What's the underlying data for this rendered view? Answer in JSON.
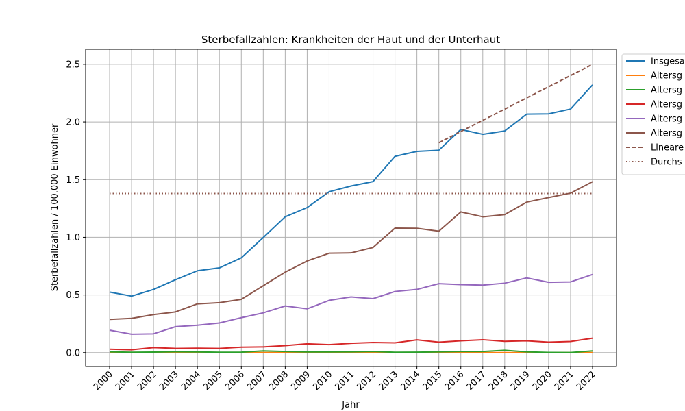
{
  "chart_data": {
    "type": "line",
    "title": "Sterbefallzahlen: Krankheiten der Haut und der Unterhaut",
    "xlabel": "Jahr",
    "ylabel": "Sterbefallzahlen / 100.000 Einwohner",
    "x": [
      2000,
      2001,
      2002,
      2003,
      2004,
      2005,
      2006,
      2007,
      2008,
      2009,
      2010,
      2011,
      2012,
      2013,
      2014,
      2015,
      2016,
      2017,
      2018,
      2019,
      2020,
      2021,
      2022
    ],
    "ylim": [
      -0.12,
      2.63
    ],
    "yticks": [
      "0.0",
      "0.5",
      "1.0",
      "1.5",
      "2.0",
      "2.5"
    ],
    "grid": true,
    "legend_position": "right-outside-top",
    "series": [
      {
        "name": "Insgesa",
        "color": "#1f77b4",
        "style": "solid",
        "values": [
          0.525,
          0.49,
          0.548,
          0.632,
          0.71,
          0.735,
          0.822,
          0.998,
          1.178,
          1.258,
          1.395,
          1.445,
          1.483,
          1.702,
          1.745,
          1.755,
          1.935,
          1.893,
          1.922,
          2.068,
          2.07,
          2.112,
          2.322
        ]
      },
      {
        "name": "Altersg",
        "color": "#ff7f0e",
        "style": "solid",
        "values": [
          0.0,
          0.0,
          0.0,
          0.0,
          0.0,
          0.0,
          0.0,
          0.0,
          0.0,
          0.0,
          0.0,
          0.0,
          0.0,
          0.0,
          0.0,
          0.0,
          0.0,
          0.0,
          0.0,
          0.0,
          0.0,
          0.0,
          0.0
        ]
      },
      {
        "name": "Altersg",
        "color": "#2ca02c",
        "style": "solid",
        "values": [
          0.007,
          0.003,
          0.005,
          0.008,
          0.006,
          0.003,
          0.004,
          0.015,
          0.01,
          0.006,
          0.006,
          0.007,
          0.01,
          0.003,
          0.004,
          0.007,
          0.01,
          0.01,
          0.02,
          0.007,
          0.002,
          0.001,
          0.015
        ]
      },
      {
        "name": "Altersg",
        "color": "#d62728",
        "style": "solid",
        "values": [
          0.03,
          0.025,
          0.044,
          0.037,
          0.039,
          0.037,
          0.048,
          0.05,
          0.061,
          0.077,
          0.069,
          0.081,
          0.088,
          0.085,
          0.111,
          0.091,
          0.103,
          0.112,
          0.098,
          0.103,
          0.091,
          0.097,
          0.126
        ]
      },
      {
        "name": "Altersg",
        "color": "#9467bd",
        "style": "solid",
        "values": [
          0.195,
          0.16,
          0.163,
          0.225,
          0.238,
          0.257,
          0.303,
          0.345,
          0.405,
          0.38,
          0.453,
          0.483,
          0.468,
          0.53,
          0.548,
          0.598,
          0.59,
          0.585,
          0.602,
          0.648,
          0.61,
          0.613,
          0.678
        ]
      },
      {
        "name": "Altersg",
        "color": "#8c564b",
        "style": "solid",
        "values": [
          0.288,
          0.297,
          0.33,
          0.353,
          0.423,
          0.433,
          0.462,
          0.58,
          0.698,
          0.795,
          0.862,
          0.865,
          0.912,
          1.08,
          1.078,
          1.053,
          1.22,
          1.178,
          1.197,
          1.305,
          1.345,
          1.383,
          1.482
        ]
      },
      {
        "name": "Lineare",
        "color": "#8c564b",
        "style": "dashed",
        "x": [
          2015,
          2022
        ],
        "values": [
          1.82,
          2.5
        ]
      },
      {
        "name": "Durchs",
        "color": "#8c564b",
        "style": "dotted",
        "x": [
          2000,
          2022
        ],
        "values": [
          1.38,
          1.38
        ]
      }
    ]
  }
}
